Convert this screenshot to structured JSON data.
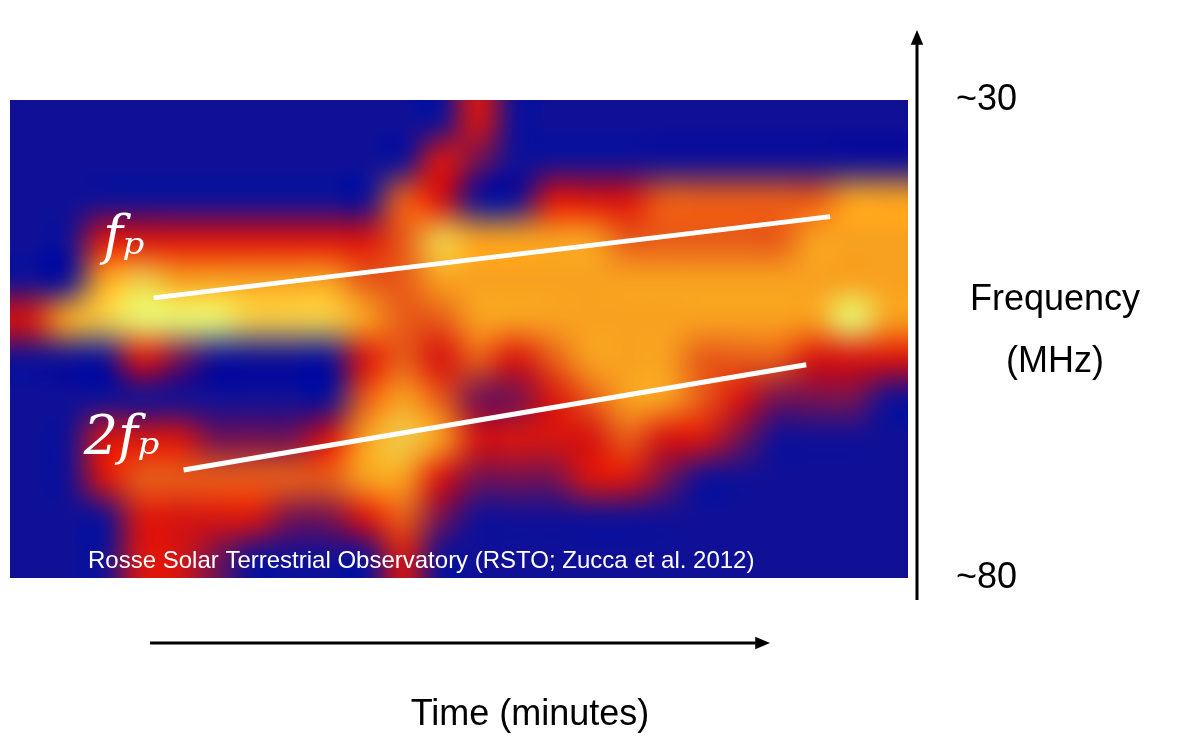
{
  "chart_data": {
    "type": "heatmap",
    "x_label": "Time (minutes)",
    "y_label": "Frequency (MHz)",
    "credit": "Rosse Solar Terrestrial Observatory (RSTO; Zucca et al. 2012)",
    "xlim": [
      0,
      30
    ],
    "ylim": [
      80,
      30
    ],
    "yticks": [
      {
        "value": 30,
        "label": "~30"
      },
      {
        "value": 80,
        "label": "~80"
      }
    ],
    "tick_labels": "y",
    "grid": false,
    "cells": [
      [
        1,
        1,
        1,
        1,
        1,
        1,
        1,
        1,
        1,
        1,
        1,
        1,
        2,
        1,
        1,
        1,
        1,
        1,
        1,
        1,
        1,
        1,
        1,
        1
      ],
      [
        1,
        1,
        1,
        1,
        1,
        1,
        1,
        1,
        1,
        1,
        1,
        2,
        1.5,
        1,
        1,
        1,
        1,
        1,
        1,
        1,
        1,
        1,
        1,
        1
      ],
      [
        1,
        1,
        1,
        1,
        1,
        1,
        1,
        1,
        1,
        1,
        2.5,
        2,
        1,
        1,
        2,
        2,
        2,
        2.5,
        2.5,
        2.5,
        2.5,
        2.5,
        3,
        3
      ],
      [
        1,
        1,
        2,
        2,
        2,
        2,
        2,
        2,
        2,
        2,
        2.5,
        3.5,
        3,
        3,
        3,
        3,
        2.5,
        2.5,
        2.5,
        2.5,
        2.5,
        3,
        3,
        3
      ],
      [
        1,
        1,
        3,
        3.5,
        3,
        3,
        3,
        3,
        3,
        2.5,
        2.5,
        3,
        3,
        3,
        3,
        3,
        3,
        3,
        3,
        3,
        3,
        3,
        3,
        3
      ],
      [
        2,
        3,
        3.5,
        4,
        4,
        4,
        3.5,
        3.5,
        3.5,
        3,
        2.5,
        2.5,
        3,
        3,
        3,
        3,
        3,
        3,
        3,
        3,
        3,
        3,
        4,
        3
      ],
      [
        1,
        1,
        1,
        2,
        1.5,
        1,
        1,
        1,
        1,
        2,
        2.5,
        2,
        2.5,
        2,
        2.5,
        3,
        3,
        3,
        2.5,
        2.5,
        2.5,
        2,
        2,
        2
      ],
      [
        1,
        1,
        1,
        1,
        1,
        1,
        1,
        1,
        1,
        2.5,
        3,
        2.5,
        1.5,
        1.5,
        2,
        2.5,
        3,
        3,
        2.5,
        2,
        1.5,
        1.5,
        1.5,
        1
      ],
      [
        1,
        1,
        2,
        2,
        2,
        1.5,
        1.5,
        1.5,
        2,
        3,
        3.5,
        3,
        2,
        2,
        2,
        2,
        2.5,
        2,
        2,
        1.5,
        1,
        1,
        1,
        1
      ],
      [
        1,
        1,
        2,
        2.5,
        2.5,
        2.5,
        2.5,
        2.5,
        2.5,
        3,
        3,
        2,
        1.5,
        1.5,
        1.5,
        2,
        2,
        1.5,
        1,
        1,
        1,
        1,
        1,
        1
      ],
      [
        1,
        1,
        1,
        2,
        2,
        2,
        2,
        1.5,
        1.5,
        2,
        2.5,
        1.5,
        1,
        1,
        1,
        1,
        1,
        1,
        1,
        1,
        1,
        1,
        1,
        1
      ],
      [
        1,
        1,
        1,
        2,
        2,
        1.5,
        1,
        1,
        1,
        1,
        2,
        1,
        1,
        1,
        1,
        1,
        1,
        1,
        1,
        1,
        1,
        1,
        1,
        1
      ]
    ],
    "series": [
      {
        "name": "fₚ",
        "color": "#ffffff",
        "x": [
          4.8,
          27.4
        ],
        "values": [
          50.7,
          42.2
        ]
      },
      {
        "name": "2fₚ",
        "color": "#ffffff",
        "x": [
          5.8,
          26.6
        ],
        "values": [
          68.7,
          57.7
        ]
      }
    ]
  }
}
